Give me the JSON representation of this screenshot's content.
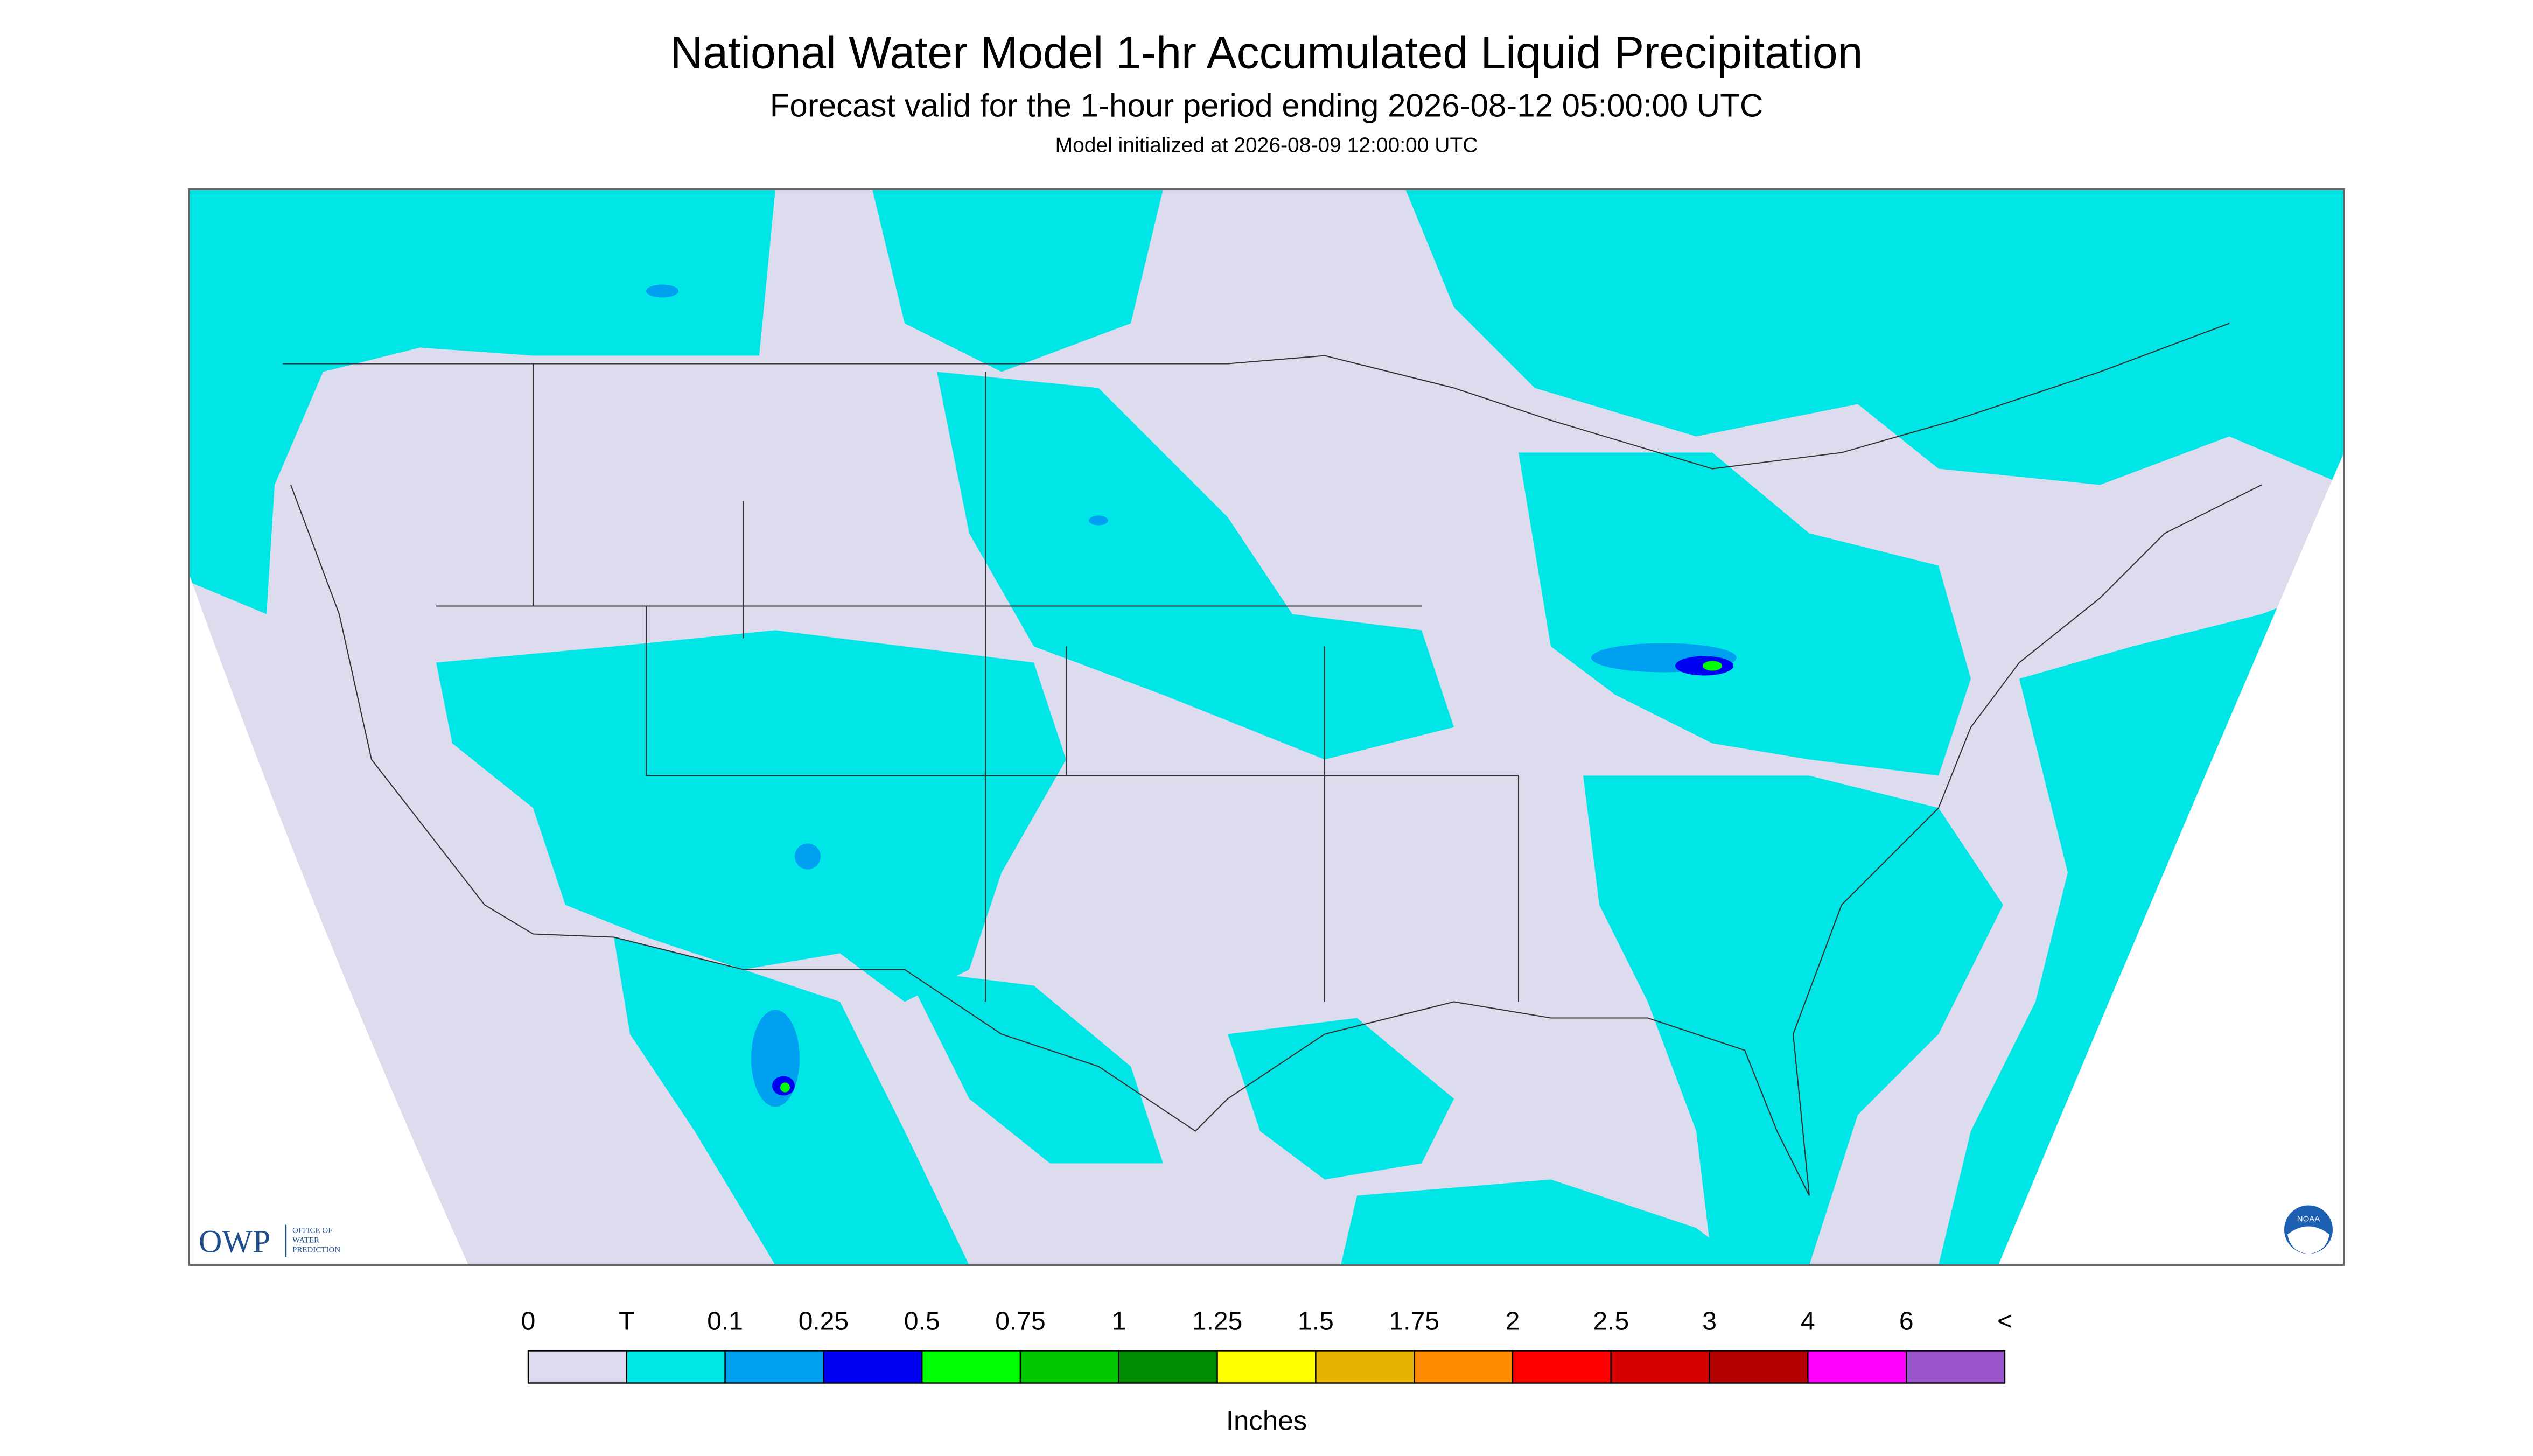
{
  "header": {
    "title": "National Water Model 1-hr Accumulated Liquid Precipitation",
    "subtitle": "Forecast valid for the 1-hour period ending 2026-08-12 05:00:00 UTC",
    "init": "Model initialized at 2026-08-09 12:00:00 UTC"
  },
  "logos": {
    "owp": "OWP",
    "owp_name": [
      "OFFICE OF",
      "WATER",
      "PREDICTION"
    ],
    "noaa": "NOAA"
  },
  "legend": {
    "labels": [
      "0",
      "T",
      "0.1",
      "0.25",
      "0.5",
      "0.75",
      "1",
      "1.25",
      "1.5",
      "1.75",
      "2",
      "2.5",
      "3",
      "4",
      "6",
      "<"
    ],
    "colors": [
      "#dcdcee",
      "#00e6e6",
      "#00a0f0",
      "#0000f5",
      "#00ff00",
      "#00c800",
      "#008c00",
      "#ffff00",
      "#e6b400",
      "#ff8c00",
      "#ff0000",
      "#d70000",
      "#b40000",
      "#ff00ff",
      "#9955c9"
    ],
    "unit": "Inches"
  }
}
